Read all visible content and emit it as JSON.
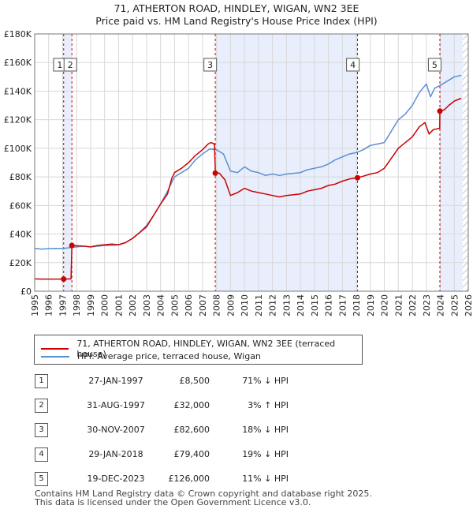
{
  "chart_data": {
    "type": "line",
    "title": "71, ATHERTON ROAD, HINDLEY, WIGAN, WN2 3EE",
    "subtitle": "Price paid vs. HM Land Registry's House Price Index (HPI)",
    "xlim": [
      1995,
      2026
    ],
    "ylim": [
      0,
      180000
    ],
    "x_ticks": [
      "1995",
      "1996",
      "1997",
      "1998",
      "1999",
      "2000",
      "2001",
      "2002",
      "2003",
      "2004",
      "2005",
      "2006",
      "2007",
      "2008",
      "2009",
      "2010",
      "2011",
      "2012",
      "2013",
      "2014",
      "2015",
      "2016",
      "2017",
      "2018",
      "2019",
      "2020",
      "2021",
      "2022",
      "2023",
      "2024",
      "2025",
      "2026"
    ],
    "y_ticks": [
      {
        "value": 0,
        "label": "£0"
      },
      {
        "value": 20000,
        "label": "£20K"
      },
      {
        "value": 40000,
        "label": "£40K"
      },
      {
        "value": 60000,
        "label": "£60K"
      },
      {
        "value": 80000,
        "label": "£80K"
      },
      {
        "value": 100000,
        "label": "£100K"
      },
      {
        "value": 120000,
        "label": "£120K"
      },
      {
        "value": 140000,
        "label": "£140K"
      },
      {
        "value": 160000,
        "label": "£160K"
      },
      {
        "value": 180000,
        "label": "£180K"
      }
    ],
    "shaded_ranges": [
      [
        1997.08,
        1997.67
      ],
      [
        2007.92,
        2018.08
      ],
      [
        2023.97,
        2025.6
      ]
    ],
    "hatched_range": [
      2025.6,
      2026
    ],
    "series": [
      {
        "name": "71, ATHERTON ROAD, HINDLEY, WIGAN, WN2 3EE (terraced house)",
        "color": "#cc0000",
        "points": [
          [
            1995.0,
            8600
          ],
          [
            1995.5,
            8500
          ],
          [
            1996.0,
            8500
          ],
          [
            1996.5,
            8500
          ],
          [
            1997.07,
            8500
          ],
          [
            1997.08,
            8500
          ],
          [
            1997.6,
            8600
          ],
          [
            1997.66,
            32000
          ],
          [
            1998.0,
            31800
          ],
          [
            1998.5,
            31500
          ],
          [
            1999.0,
            31000
          ],
          [
            1999.5,
            32000
          ],
          [
            2000.0,
            32500
          ],
          [
            2000.5,
            33000
          ],
          [
            2001.0,
            32500
          ],
          [
            2001.5,
            34000
          ],
          [
            2002.0,
            37000
          ],
          [
            2002.5,
            41000
          ],
          [
            2003.0,
            45000
          ],
          [
            2003.5,
            53000
          ],
          [
            2004.0,
            61000
          ],
          [
            2004.5,
            68000
          ],
          [
            2004.8,
            79000
          ],
          [
            2005.0,
            83000
          ],
          [
            2005.5,
            86000
          ],
          [
            2006.0,
            90000
          ],
          [
            2006.5,
            95000
          ],
          [
            2007.0,
            99000
          ],
          [
            2007.4,
            103000
          ],
          [
            2007.6,
            104000
          ],
          [
            2007.85,
            103000
          ],
          [
            2007.92,
            83000
          ],
          [
            2008.2,
            82600
          ],
          [
            2008.6,
            78000
          ],
          [
            2009.0,
            67000
          ],
          [
            2009.5,
            69000
          ],
          [
            2010.0,
            72000
          ],
          [
            2010.5,
            70000
          ],
          [
            2011.0,
            69000
          ],
          [
            2011.5,
            68000
          ],
          [
            2012.0,
            67000
          ],
          [
            2012.5,
            66000
          ],
          [
            2013.0,
            67000
          ],
          [
            2013.5,
            67500
          ],
          [
            2014.0,
            68000
          ],
          [
            2014.5,
            70000
          ],
          [
            2015.0,
            71000
          ],
          [
            2015.5,
            72000
          ],
          [
            2016.0,
            74000
          ],
          [
            2016.5,
            75000
          ],
          [
            2017.0,
            77000
          ],
          [
            2017.5,
            78500
          ],
          [
            2018.08,
            79400
          ],
          [
            2018.5,
            80500
          ],
          [
            2019.0,
            82000
          ],
          [
            2019.5,
            83000
          ],
          [
            2020.0,
            86000
          ],
          [
            2020.5,
            93000
          ],
          [
            2021.0,
            100000
          ],
          [
            2021.5,
            104000
          ],
          [
            2022.0,
            108000
          ],
          [
            2022.5,
            115000
          ],
          [
            2022.9,
            118000
          ],
          [
            2023.2,
            110000
          ],
          [
            2023.5,
            113000
          ],
          [
            2023.96,
            114000
          ],
          [
            2023.97,
            126000
          ],
          [
            2024.3,
            127000
          ],
          [
            2024.6,
            130000
          ],
          [
            2025.0,
            133000
          ],
          [
            2025.5,
            135000
          ]
        ]
      },
      {
        "name": "HPI: Average price, terraced house, Wigan",
        "color": "#5b8fd3",
        "points": [
          [
            1995.0,
            30000
          ],
          [
            1995.5,
            29500
          ],
          [
            1996.0,
            29800
          ],
          [
            1996.5,
            30000
          ],
          [
            1997.0,
            29800
          ],
          [
            1997.5,
            30500
          ],
          [
            1998.0,
            31000
          ],
          [
            1998.5,
            31500
          ],
          [
            1999.0,
            31000
          ],
          [
            1999.5,
            31500
          ],
          [
            2000.0,
            32000
          ],
          [
            2000.5,
            32000
          ],
          [
            2001.0,
            32500
          ],
          [
            2001.5,
            34000
          ],
          [
            2002.0,
            37000
          ],
          [
            2002.5,
            41000
          ],
          [
            2003.0,
            46000
          ],
          [
            2003.5,
            53000
          ],
          [
            2004.0,
            61000
          ],
          [
            2004.5,
            70000
          ],
          [
            2005.0,
            80000
          ],
          [
            2005.5,
            83000
          ],
          [
            2006.0,
            86000
          ],
          [
            2006.5,
            92000
          ],
          [
            2007.0,
            96000
          ],
          [
            2007.5,
            99500
          ],
          [
            2008.0,
            99000
          ],
          [
            2008.5,
            96000
          ],
          [
            2009.0,
            84000
          ],
          [
            2009.5,
            83000
          ],
          [
            2010.0,
            87000
          ],
          [
            2010.5,
            84000
          ],
          [
            2011.0,
            83000
          ],
          [
            2011.5,
            81000
          ],
          [
            2012.0,
            82000
          ],
          [
            2012.5,
            81000
          ],
          [
            2013.0,
            82000
          ],
          [
            2013.5,
            82500
          ],
          [
            2014.0,
            83000
          ],
          [
            2014.5,
            85000
          ],
          [
            2015.0,
            86000
          ],
          [
            2015.5,
            87000
          ],
          [
            2016.0,
            89000
          ],
          [
            2016.5,
            92000
          ],
          [
            2017.0,
            94000
          ],
          [
            2017.5,
            96000
          ],
          [
            2018.0,
            97000
          ],
          [
            2018.5,
            99000
          ],
          [
            2019.0,
            102000
          ],
          [
            2019.5,
            103000
          ],
          [
            2020.0,
            104000
          ],
          [
            2020.5,
            112000
          ],
          [
            2021.0,
            120000
          ],
          [
            2021.5,
            124000
          ],
          [
            2022.0,
            130000
          ],
          [
            2022.5,
            139000
          ],
          [
            2023.0,
            145000
          ],
          [
            2023.3,
            136000
          ],
          [
            2023.6,
            142000
          ],
          [
            2024.0,
            144000
          ],
          [
            2024.5,
            147000
          ],
          [
            2025.0,
            150000
          ],
          [
            2025.5,
            151000
          ]
        ]
      }
    ],
    "sales": [
      {
        "id": "1",
        "x": 1997.07,
        "value": 8500,
        "label_x": 1996.8
      },
      {
        "id": "2",
        "x": 1997.66,
        "value": 32000,
        "label_x": 1997.55
      },
      {
        "id": "3",
        "x": 2007.91,
        "value": 82600,
        "label_x": 2007.55
      },
      {
        "id": "4",
        "x": 2018.08,
        "value": 79400,
        "label_x": 2017.75
      },
      {
        "id": "5",
        "x": 2023.97,
        "value": 126000,
        "label_x": 2023.6
      }
    ],
    "colors": {
      "property": "#cc0000",
      "hpi": "#5b8fd3",
      "shade": "#e8eefb",
      "grid": "#d8d8d8",
      "vline": "#cc0000"
    }
  },
  "legend": {
    "property_label": "71, ATHERTON ROAD, HINDLEY, WIGAN, WN2 3EE (terraced house)",
    "hpi_label": "HPI: Average price, terraced house, Wigan"
  },
  "transactions": [
    {
      "num": "1",
      "date": "27-JAN-1997",
      "price": "£8,500",
      "hpi": "71% ↓ HPI"
    },
    {
      "num": "2",
      "date": "31-AUG-1997",
      "price": "£32,000",
      "hpi": "3% ↑ HPI"
    },
    {
      "num": "3",
      "date": "30-NOV-2007",
      "price": "£82,600",
      "hpi": "18% ↓ HPI"
    },
    {
      "num": "4",
      "date": "29-JAN-2018",
      "price": "£79,400",
      "hpi": "19% ↓ HPI"
    },
    {
      "num": "5",
      "date": "19-DEC-2023",
      "price": "£126,000",
      "hpi": "11% ↓ HPI"
    }
  ],
  "footer": {
    "line1": "Contains HM Land Registry data © Crown copyright and database right 2025.",
    "line2": "This data is licensed under the Open Government Licence v3.0."
  }
}
